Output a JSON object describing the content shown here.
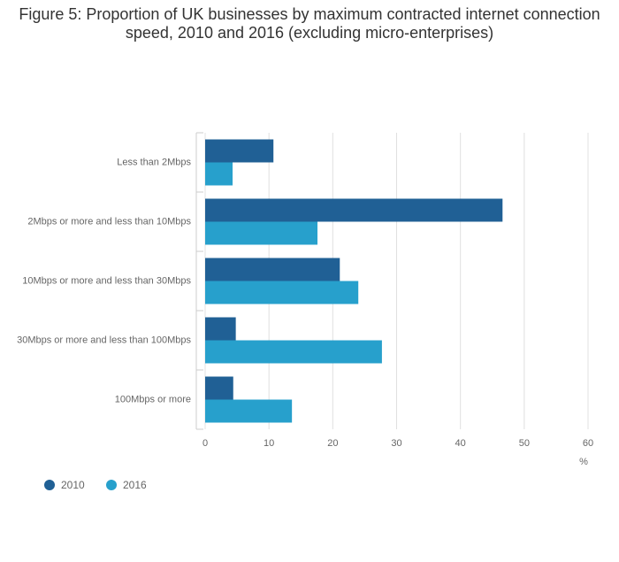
{
  "chart_data": {
    "type": "bar",
    "orientation": "horizontal",
    "title": "Figure 5: Proportion of UK businesses by maximum contracted internet connection speed, 2010 and 2016 (excluding micro-enterprises)",
    "categories": [
      "Less than 2Mbps",
      "2Mbps or more and less than 10Mbps",
      "10Mbps or more and less than 30Mbps",
      "30Mbps or more and less than 100Mbps",
      "100Mbps or more"
    ],
    "series": [
      {
        "name": "2010",
        "color": "#206095",
        "values": [
          10.7,
          46.6,
          21.1,
          4.8,
          4.4
        ]
      },
      {
        "name": "2016",
        "color": "#27a0cc",
        "values": [
          4.3,
          17.6,
          24.0,
          27.7,
          13.6
        ]
      }
    ],
    "x_label": "%",
    "xlim": [
      0,
      60
    ],
    "xticks": [
      0,
      10,
      20,
      30,
      40,
      50,
      60
    ],
    "grid": true
  }
}
